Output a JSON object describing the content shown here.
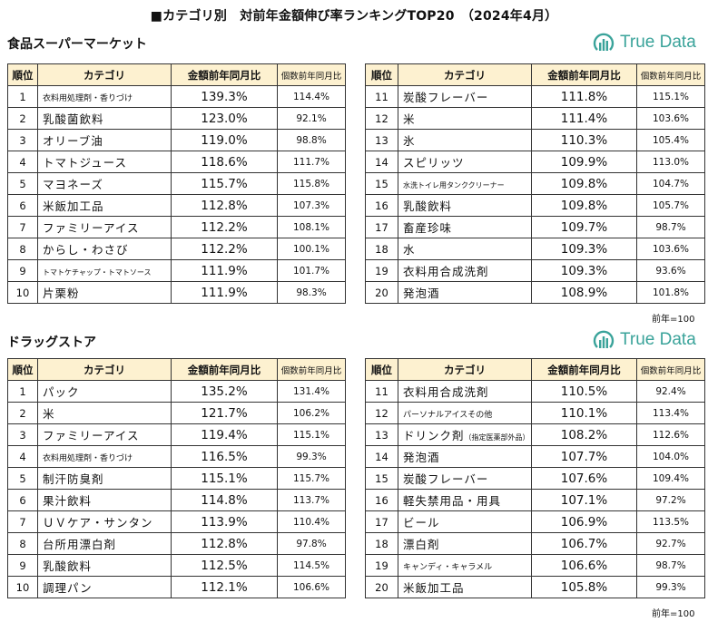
{
  "title": "■カテゴリ別　対前年金額伸び率ランキングTOP20　（2024年4月）",
  "brand": "True Data",
  "headers": {
    "rank": "順位",
    "category": "カテゴリ",
    "amount": "金額前年同月比",
    "count": "個数前年同月比"
  },
  "note": "前年=100",
  "super": {
    "title": "食品スーパーマーケット",
    "left": [
      {
        "rank": "1",
        "category": "衣料用処理剤・香りづけ",
        "amount": "139.3%",
        "count": "114.4%"
      },
      {
        "rank": "2",
        "category": "乳酸菌飲料",
        "amount": "123.0%",
        "count": "92.1%"
      },
      {
        "rank": "3",
        "category": "オリーブ油",
        "amount": "119.0%",
        "count": "98.8%"
      },
      {
        "rank": "4",
        "category": "トマトジュース",
        "amount": "118.6%",
        "count": "111.7%"
      },
      {
        "rank": "5",
        "category": "マヨネーズ",
        "amount": "115.7%",
        "count": "115.8%"
      },
      {
        "rank": "6",
        "category": "米飯加工品",
        "amount": "112.8%",
        "count": "107.3%"
      },
      {
        "rank": "7",
        "category": "ファミリーアイス",
        "amount": "112.2%",
        "count": "108.1%"
      },
      {
        "rank": "8",
        "category": "からし・わさび",
        "amount": "112.2%",
        "count": "100.1%"
      },
      {
        "rank": "9",
        "category": "トマトケチャップ・トマトソース",
        "amount": "111.9%",
        "count": "101.7%"
      },
      {
        "rank": "10",
        "category": "片栗粉",
        "amount": "111.9%",
        "count": "98.3%"
      }
    ],
    "right": [
      {
        "rank": "11",
        "category": "炭酸フレーバー",
        "amount": "111.8%",
        "count": "115.1%"
      },
      {
        "rank": "12",
        "category": "米",
        "amount": "111.4%",
        "count": "103.6%"
      },
      {
        "rank": "13",
        "category": "氷",
        "amount": "110.3%",
        "count": "105.4%"
      },
      {
        "rank": "14",
        "category": "スピリッツ",
        "amount": "109.9%",
        "count": "113.0%"
      },
      {
        "rank": "15",
        "category": "水洗トイレ用タンククリーナー",
        "amount": "109.8%",
        "count": "104.7%"
      },
      {
        "rank": "16",
        "category": "乳酸飲料",
        "amount": "109.8%",
        "count": "105.7%"
      },
      {
        "rank": "17",
        "category": "畜産珍味",
        "amount": "109.7%",
        "count": "98.7%"
      },
      {
        "rank": "18",
        "category": "水",
        "amount": "109.3%",
        "count": "103.6%"
      },
      {
        "rank": "19",
        "category": "衣料用合成洗剤",
        "amount": "109.3%",
        "count": "93.6%"
      },
      {
        "rank": "20",
        "category": "発泡酒",
        "amount": "108.9%",
        "count": "101.8%"
      }
    ]
  },
  "drug": {
    "title": "ドラッグストア",
    "left": [
      {
        "rank": "1",
        "category": "パック",
        "amount": "135.2%",
        "count": "131.4%"
      },
      {
        "rank": "2",
        "category": "米",
        "amount": "121.7%",
        "count": "106.2%"
      },
      {
        "rank": "3",
        "category": "ファミリーアイス",
        "amount": "119.4%",
        "count": "115.1%"
      },
      {
        "rank": "4",
        "category": "衣料用処理剤・香りづけ",
        "amount": "116.5%",
        "count": "99.3%"
      },
      {
        "rank": "5",
        "category": "制汗防臭剤",
        "amount": "115.1%",
        "count": "115.7%"
      },
      {
        "rank": "6",
        "category": "果汁飲料",
        "amount": "114.8%",
        "count": "113.7%"
      },
      {
        "rank": "7",
        "category": "ＵＶケア・サンタン",
        "amount": "113.9%",
        "count": "110.4%"
      },
      {
        "rank": "8",
        "category": "台所用漂白剤",
        "amount": "112.8%",
        "count": "97.8%"
      },
      {
        "rank": "9",
        "category": "乳酸飲料",
        "amount": "112.5%",
        "count": "114.5%"
      },
      {
        "rank": "10",
        "category": "調理パン",
        "amount": "112.1%",
        "count": "106.6%"
      }
    ],
    "right": [
      {
        "rank": "11",
        "category": "衣料用合成洗剤",
        "amount": "110.5%",
        "count": "92.4%"
      },
      {
        "rank": "12",
        "category": "パーソナルアイスその他",
        "amount": "110.1%",
        "count": "113.4%"
      },
      {
        "rank": "13",
        "category": "ドリンク剤",
        "category_note": "（指定医薬部外品）",
        "amount": "108.2%",
        "count": "112.6%"
      },
      {
        "rank": "14",
        "category": "発泡酒",
        "amount": "107.7%",
        "count": "104.0%"
      },
      {
        "rank": "15",
        "category": "炭酸フレーバー",
        "amount": "107.6%",
        "count": "109.4%"
      },
      {
        "rank": "16",
        "category": "軽失禁用品・用具",
        "amount": "107.1%",
        "count": "97.2%"
      },
      {
        "rank": "17",
        "category": "ビール",
        "amount": "106.9%",
        "count": "113.5%"
      },
      {
        "rank": "18",
        "category": "漂白剤",
        "amount": "106.7%",
        "count": "92.7%"
      },
      {
        "rank": "19",
        "category": "キャンディ・キャラメル",
        "amount": "106.6%",
        "count": "98.7%"
      },
      {
        "rank": "20",
        "category": "米飯加工品",
        "amount": "105.8%",
        "count": "99.3%"
      }
    ]
  }
}
